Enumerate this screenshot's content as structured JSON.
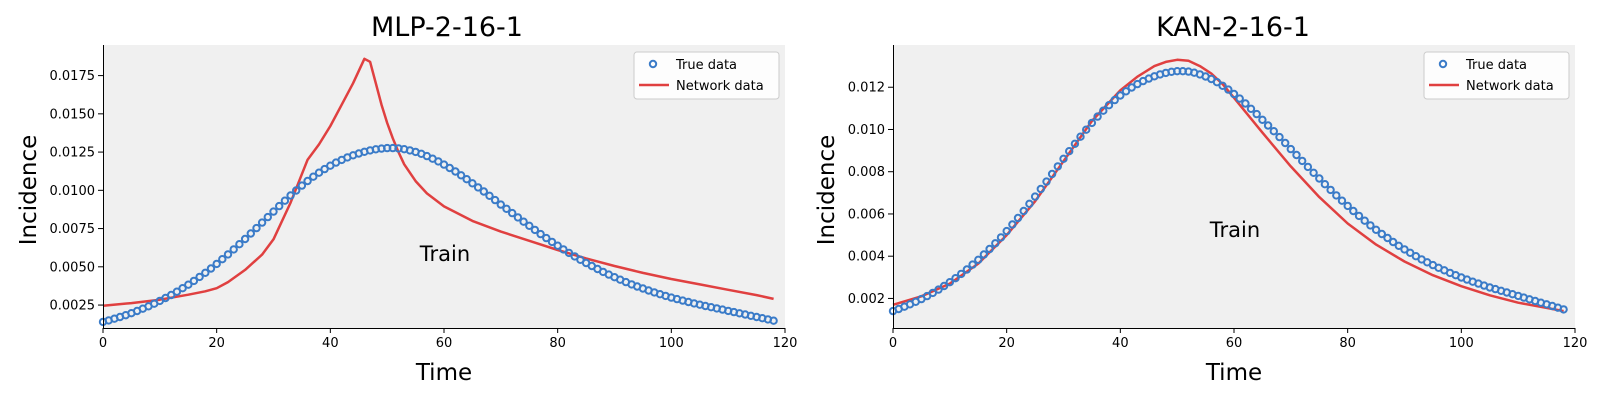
{
  "colors": {
    "true_data": "#3a7bc8",
    "network_data": "#e04040",
    "plot_bg": "#f0f0f0"
  },
  "chart_data": [
    {
      "type": "line",
      "title": "MLP-2-16-1",
      "xlabel": "Time",
      "ylabel": "Incidence",
      "annotation": "Train",
      "xlim": [
        0,
        120
      ],
      "ylim": [
        0.001,
        0.0195
      ],
      "xticks": [
        "0",
        "20",
        "40",
        "60",
        "80",
        "100",
        "120"
      ],
      "yticks": [
        "0.0025",
        "0.0050",
        "0.0075",
        "0.0100",
        "0.0125",
        "0.0150",
        "0.0175"
      ],
      "legend": {
        "position": "top-right",
        "entries": [
          "True data",
          "Network data"
        ]
      },
      "grid": false,
      "series": [
        {
          "name": "True data",
          "marker": "open-circle",
          "x": [
            0,
            1,
            2,
            3,
            4,
            5,
            6,
            7,
            8,
            9,
            10,
            11,
            12,
            13,
            14,
            15,
            16,
            17,
            18,
            19,
            20,
            21,
            22,
            23,
            24,
            25,
            26,
            27,
            28,
            29,
            30,
            31,
            32,
            33,
            34,
            35,
            36,
            37,
            38,
            39,
            40,
            41,
            42,
            43,
            44,
            45,
            46,
            47,
            48,
            49,
            50,
            51,
            52,
            53,
            54,
            55,
            56,
            57,
            58,
            59,
            60,
            61,
            62,
            63,
            64,
            65,
            66,
            67,
            68,
            69,
            70,
            71,
            72,
            73,
            74,
            75,
            76,
            77,
            78,
            79,
            80,
            81,
            82,
            83,
            84,
            85,
            86,
            87,
            88,
            89,
            90,
            91,
            92,
            93,
            94,
            95,
            96,
            97,
            98,
            99,
            100,
            101,
            102,
            103,
            104,
            105,
            106,
            107,
            108,
            109,
            110,
            111,
            112,
            113,
            114,
            115,
            116,
            117,
            118
          ],
          "y": [
            0.0014,
            0.0015,
            0.00161,
            0.00172,
            0.00184,
            0.00197,
            0.00211,
            0.00226,
            0.00242,
            0.00259,
            0.00277,
            0.00296,
            0.00316,
            0.00337,
            0.0036,
            0.00383,
            0.00408,
            0.00434,
            0.00461,
            0.00489,
            0.00519,
            0.0055,
            0.00581,
            0.00614,
            0.00648,
            0.00682,
            0.00718,
            0.00753,
            0.00789,
            0.00825,
            0.00861,
            0.00897,
            0.00932,
            0.00966,
            0.00999,
            0.01031,
            0.01061,
            0.01089,
            0.01115,
            0.01139,
            0.01161,
            0.01181,
            0.01199,
            0.01215,
            0.01229,
            0.01241,
            0.01252,
            0.01261,
            0.01268,
            0.01273,
            0.01276,
            0.01276,
            0.01274,
            0.01269,
            0.01261,
            0.01251,
            0.01239,
            0.01224,
            0.01207,
            0.01189,
            0.01168,
            0.01146,
            0.01123,
            0.01098,
            0.01073,
            0.01046,
            0.01019,
            0.00992,
            0.00964,
            0.00936,
            0.00907,
            0.00879,
            0.00851,
            0.00823,
            0.00795,
            0.00768,
            0.00741,
            0.00714,
            0.00688,
            0.00663,
            0.00638,
            0.00614,
            0.00591,
            0.00568,
            0.00546,
            0.00525,
            0.00505,
            0.00486,
            0.00467,
            0.00449,
            0.00432,
            0.00416,
            0.004,
            0.00385,
            0.00371,
            0.00358,
            0.00345,
            0.00333,
            0.00321,
            0.0031,
            0.00299,
            0.00289,
            0.00279,
            0.0027,
            0.00261,
            0.00252,
            0.00244,
            0.00236,
            0.00228,
            0.0022,
            0.00212,
            0.00204,
            0.00196,
            0.00188,
            0.0018,
            0.00172,
            0.00164,
            0.00156,
            0.00148
          ]
        },
        {
          "name": "Network data",
          "marker": "line",
          "x": [
            0,
            5,
            10,
            15,
            18,
            20,
            22,
            25,
            28,
            30,
            33,
            36,
            38,
            40,
            42,
            44,
            46,
            47,
            48,
            49,
            50,
            51,
            52,
            53,
            55,
            57,
            60,
            65,
            70,
            75,
            80,
            85,
            90,
            95,
            100,
            105,
            110,
            115,
            118
          ],
          "y": [
            0.00245,
            0.00263,
            0.00285,
            0.00318,
            0.0034,
            0.0036,
            0.004,
            0.0048,
            0.0058,
            0.0068,
            0.0092,
            0.012,
            0.013,
            0.0142,
            0.0156,
            0.017,
            0.0186,
            0.0184,
            0.017,
            0.0156,
            0.0144,
            0.0134,
            0.0125,
            0.0117,
            0.0106,
            0.0098,
            0.00895,
            0.008,
            0.0073,
            0.0067,
            0.0061,
            0.00555,
            0.00505,
            0.0046,
            0.0042,
            0.00385,
            0.0035,
            0.00315,
            0.0029
          ]
        }
      ]
    },
    {
      "type": "line",
      "title": "KAN-2-16-1",
      "xlabel": "Time",
      "ylabel": "Incidence",
      "annotation": "Train",
      "xlim": [
        0,
        120
      ],
      "ylim": [
        0.0006,
        0.014
      ],
      "xticks": [
        "0",
        "20",
        "40",
        "60",
        "80",
        "100",
        "120"
      ],
      "yticks": [
        "0.002",
        "0.004",
        "0.006",
        "0.008",
        "0.010",
        "0.012"
      ],
      "legend": {
        "position": "top-right",
        "entries": [
          "True data",
          "Network data"
        ]
      },
      "grid": false,
      "series": [
        {
          "name": "True data",
          "marker": "open-circle",
          "x": [
            0,
            1,
            2,
            3,
            4,
            5,
            6,
            7,
            8,
            9,
            10,
            11,
            12,
            13,
            14,
            15,
            16,
            17,
            18,
            19,
            20,
            21,
            22,
            23,
            24,
            25,
            26,
            27,
            28,
            29,
            30,
            31,
            32,
            33,
            34,
            35,
            36,
            37,
            38,
            39,
            40,
            41,
            42,
            43,
            44,
            45,
            46,
            47,
            48,
            49,
            50,
            51,
            52,
            53,
            54,
            55,
            56,
            57,
            58,
            59,
            60,
            61,
            62,
            63,
            64,
            65,
            66,
            67,
            68,
            69,
            70,
            71,
            72,
            73,
            74,
            75,
            76,
            77,
            78,
            79,
            80,
            81,
            82,
            83,
            84,
            85,
            86,
            87,
            88,
            89,
            90,
            91,
            92,
            93,
            94,
            95,
            96,
            97,
            98,
            99,
            100,
            101,
            102,
            103,
            104,
            105,
            106,
            107,
            108,
            109,
            110,
            111,
            112,
            113,
            114,
            115,
            116,
            117,
            118
          ],
          "y": [
            0.0014,
            0.0015,
            0.00161,
            0.00172,
            0.00184,
            0.00197,
            0.00211,
            0.00226,
            0.00242,
            0.00259,
            0.00277,
            0.00296,
            0.00316,
            0.00337,
            0.0036,
            0.00383,
            0.00408,
            0.00434,
            0.00461,
            0.00489,
            0.00519,
            0.0055,
            0.00581,
            0.00614,
            0.00648,
            0.00682,
            0.00718,
            0.00753,
            0.00789,
            0.00825,
            0.00861,
            0.00897,
            0.00932,
            0.00966,
            0.00999,
            0.01031,
            0.01061,
            0.01089,
            0.01115,
            0.01139,
            0.01161,
            0.01181,
            0.01199,
            0.01215,
            0.01229,
            0.01241,
            0.01252,
            0.01261,
            0.01268,
            0.01273,
            0.01276,
            0.01276,
            0.01274,
            0.01269,
            0.01261,
            0.01251,
            0.01239,
            0.01224,
            0.01207,
            0.01189,
            0.01168,
            0.01146,
            0.01123,
            0.01098,
            0.01073,
            0.01046,
            0.01019,
            0.00992,
            0.00964,
            0.00936,
            0.00907,
            0.00879,
            0.00851,
            0.00823,
            0.00795,
            0.00768,
            0.00741,
            0.00714,
            0.00688,
            0.00663,
            0.00638,
            0.00614,
            0.00591,
            0.00568,
            0.00546,
            0.00525,
            0.00505,
            0.00486,
            0.00467,
            0.00449,
            0.00432,
            0.00416,
            0.004,
            0.00385,
            0.00371,
            0.00358,
            0.00345,
            0.00333,
            0.00321,
            0.0031,
            0.00299,
            0.00289,
            0.00279,
            0.0027,
            0.00261,
            0.00252,
            0.00244,
            0.00236,
            0.00228,
            0.0022,
            0.00212,
            0.00204,
            0.00196,
            0.00188,
            0.0018,
            0.00172,
            0.00164,
            0.00156,
            0.00148
          ]
        },
        {
          "name": "Network data",
          "marker": "line",
          "x": [
            0,
            5,
            10,
            15,
            20,
            25,
            30,
            35,
            40,
            43,
            46,
            48,
            50,
            52,
            54,
            56,
            58,
            60,
            65,
            70,
            75,
            80,
            85,
            90,
            95,
            100,
            105,
            110,
            115,
            118
          ],
          "y": [
            0.0017,
            0.0021,
            0.0027,
            0.00365,
            0.005,
            0.0066,
            0.0085,
            0.0104,
            0.01185,
            0.0125,
            0.013,
            0.0132,
            0.0133,
            0.01325,
            0.013,
            0.01265,
            0.01215,
            0.0115,
            0.00985,
            0.00825,
            0.0068,
            0.00555,
            0.00455,
            0.00375,
            0.0031,
            0.00258,
            0.00215,
            0.0018,
            0.00155,
            0.0014
          ]
        }
      ]
    }
  ]
}
